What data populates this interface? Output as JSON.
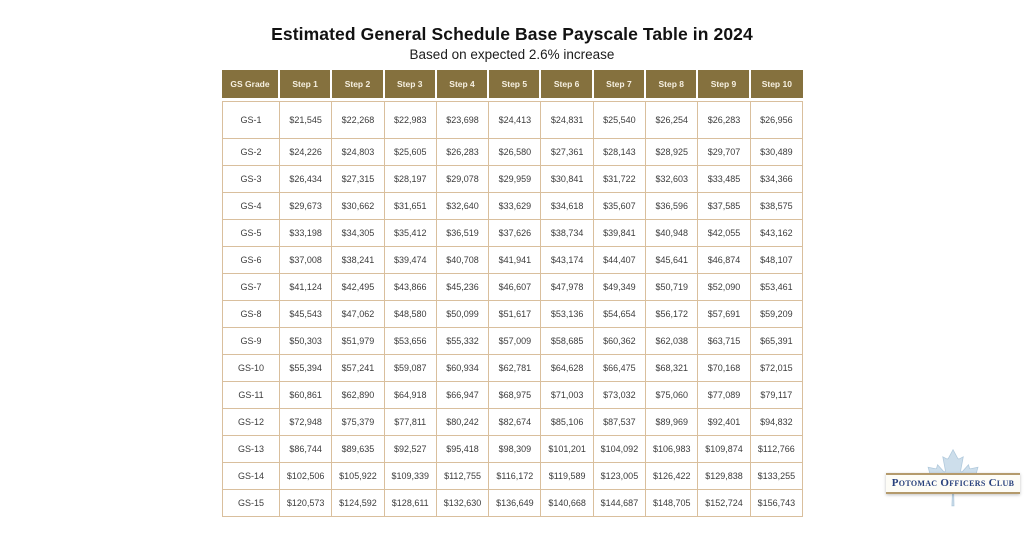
{
  "page": {
    "title": "Estimated General Schedule Base Payscale Table in 2024",
    "subtitle": "Based on expected 2.6% increase"
  },
  "chart_data": {
    "type": "table",
    "title": "Estimated General Schedule Base Payscale Table in 2024",
    "subtitle": "Based on expected 2.6% increase",
    "columns": [
      "GS Grade",
      "Step 1",
      "Step 2",
      "Step 3",
      "Step 4",
      "Step 5",
      "Step 6",
      "Step 7",
      "Step 8",
      "Step 9",
      "Step 10"
    ],
    "rows": [
      [
        "GS-1",
        "$21,545",
        "$22,268",
        "$22,983",
        "$23,698",
        "$24,413",
        "$24,831",
        "$25,540",
        "$26,254",
        "$26,283",
        "$26,956"
      ],
      [
        "GS-2",
        "$24,226",
        "$24,803",
        "$25,605",
        "$26,283",
        "$26,580",
        "$27,361",
        "$28,143",
        "$28,925",
        "$29,707",
        "$30,489"
      ],
      [
        "GS-3",
        "$26,434",
        "$27,315",
        "$28,197",
        "$29,078",
        "$29,959",
        "$30,841",
        "$31,722",
        "$32,603",
        "$33,485",
        "$34,366"
      ],
      [
        "GS-4",
        "$29,673",
        "$30,662",
        "$31,651",
        "$32,640",
        "$33,629",
        "$34,618",
        "$35,607",
        "$36,596",
        "$37,585",
        "$38,575"
      ],
      [
        "GS-5",
        "$33,198",
        "$34,305",
        "$35,412",
        "$36,519",
        "$37,626",
        "$38,734",
        "$39,841",
        "$40,948",
        "$42,055",
        "$43,162"
      ],
      [
        "GS-6",
        "$37,008",
        "$38,241",
        "$39,474",
        "$40,708",
        "$41,941",
        "$43,174",
        "$44,407",
        "$45,641",
        "$46,874",
        "$48,107"
      ],
      [
        "GS-7",
        "$41,124",
        "$42,495",
        "$43,866",
        "$45,236",
        "$46,607",
        "$47,978",
        "$49,349",
        "$50,719",
        "$52,090",
        "$53,461"
      ],
      [
        "GS-8",
        "$45,543",
        "$47,062",
        "$48,580",
        "$50,099",
        "$51,617",
        "$53,136",
        "$54,654",
        "$56,172",
        "$57,691",
        "$59,209"
      ],
      [
        "GS-9",
        "$50,303",
        "$51,979",
        "$53,656",
        "$55,332",
        "$57,009",
        "$58,685",
        "$60,362",
        "$62,038",
        "$63,715",
        "$65,391"
      ],
      [
        "GS-10",
        "$55,394",
        "$57,241",
        "$59,087",
        "$60,934",
        "$62,781",
        "$64,628",
        "$66,475",
        "$68,321",
        "$70,168",
        "$72,015"
      ],
      [
        "GS-11",
        "$60,861",
        "$62,890",
        "$64,918",
        "$66,947",
        "$68,975",
        "$71,003",
        "$73,032",
        "$75,060",
        "$77,089",
        "$79,117"
      ],
      [
        "GS-12",
        "$72,948",
        "$75,379",
        "$77,811",
        "$80,242",
        "$82,674",
        "$85,106",
        "$87,537",
        "$89,969",
        "$92,401",
        "$94,832"
      ],
      [
        "GS-13",
        "$86,744",
        "$89,635",
        "$92,527",
        "$95,418",
        "$98,309",
        "$101,201",
        "$104,092",
        "$106,983",
        "$109,874",
        "$112,766"
      ],
      [
        "GS-14",
        "$102,506",
        "$105,922",
        "$109,339",
        "$112,755",
        "$116,172",
        "$119,589",
        "$123,005",
        "$126,422",
        "$129,838",
        "$133,255"
      ],
      [
        "GS-15",
        "$120,573",
        "$124,592",
        "$128,611",
        "$132,630",
        "$136,649",
        "$140,668",
        "$144,687",
        "$148,705",
        "$152,724",
        "$156,743"
      ]
    ],
    "layout": {
      "grid": true,
      "header_position": "top"
    }
  },
  "logo": {
    "text": "Potomac Officers Club"
  },
  "colors": {
    "header_bg": "#85713e",
    "header_text": "#f6f0e1",
    "cell_border": "#d9bf9d",
    "cell_text": "#3c3c3c",
    "leaf_blue": "#cddeeb",
    "banner_border": "#b49a6c",
    "logo_navy": "#28417d"
  }
}
